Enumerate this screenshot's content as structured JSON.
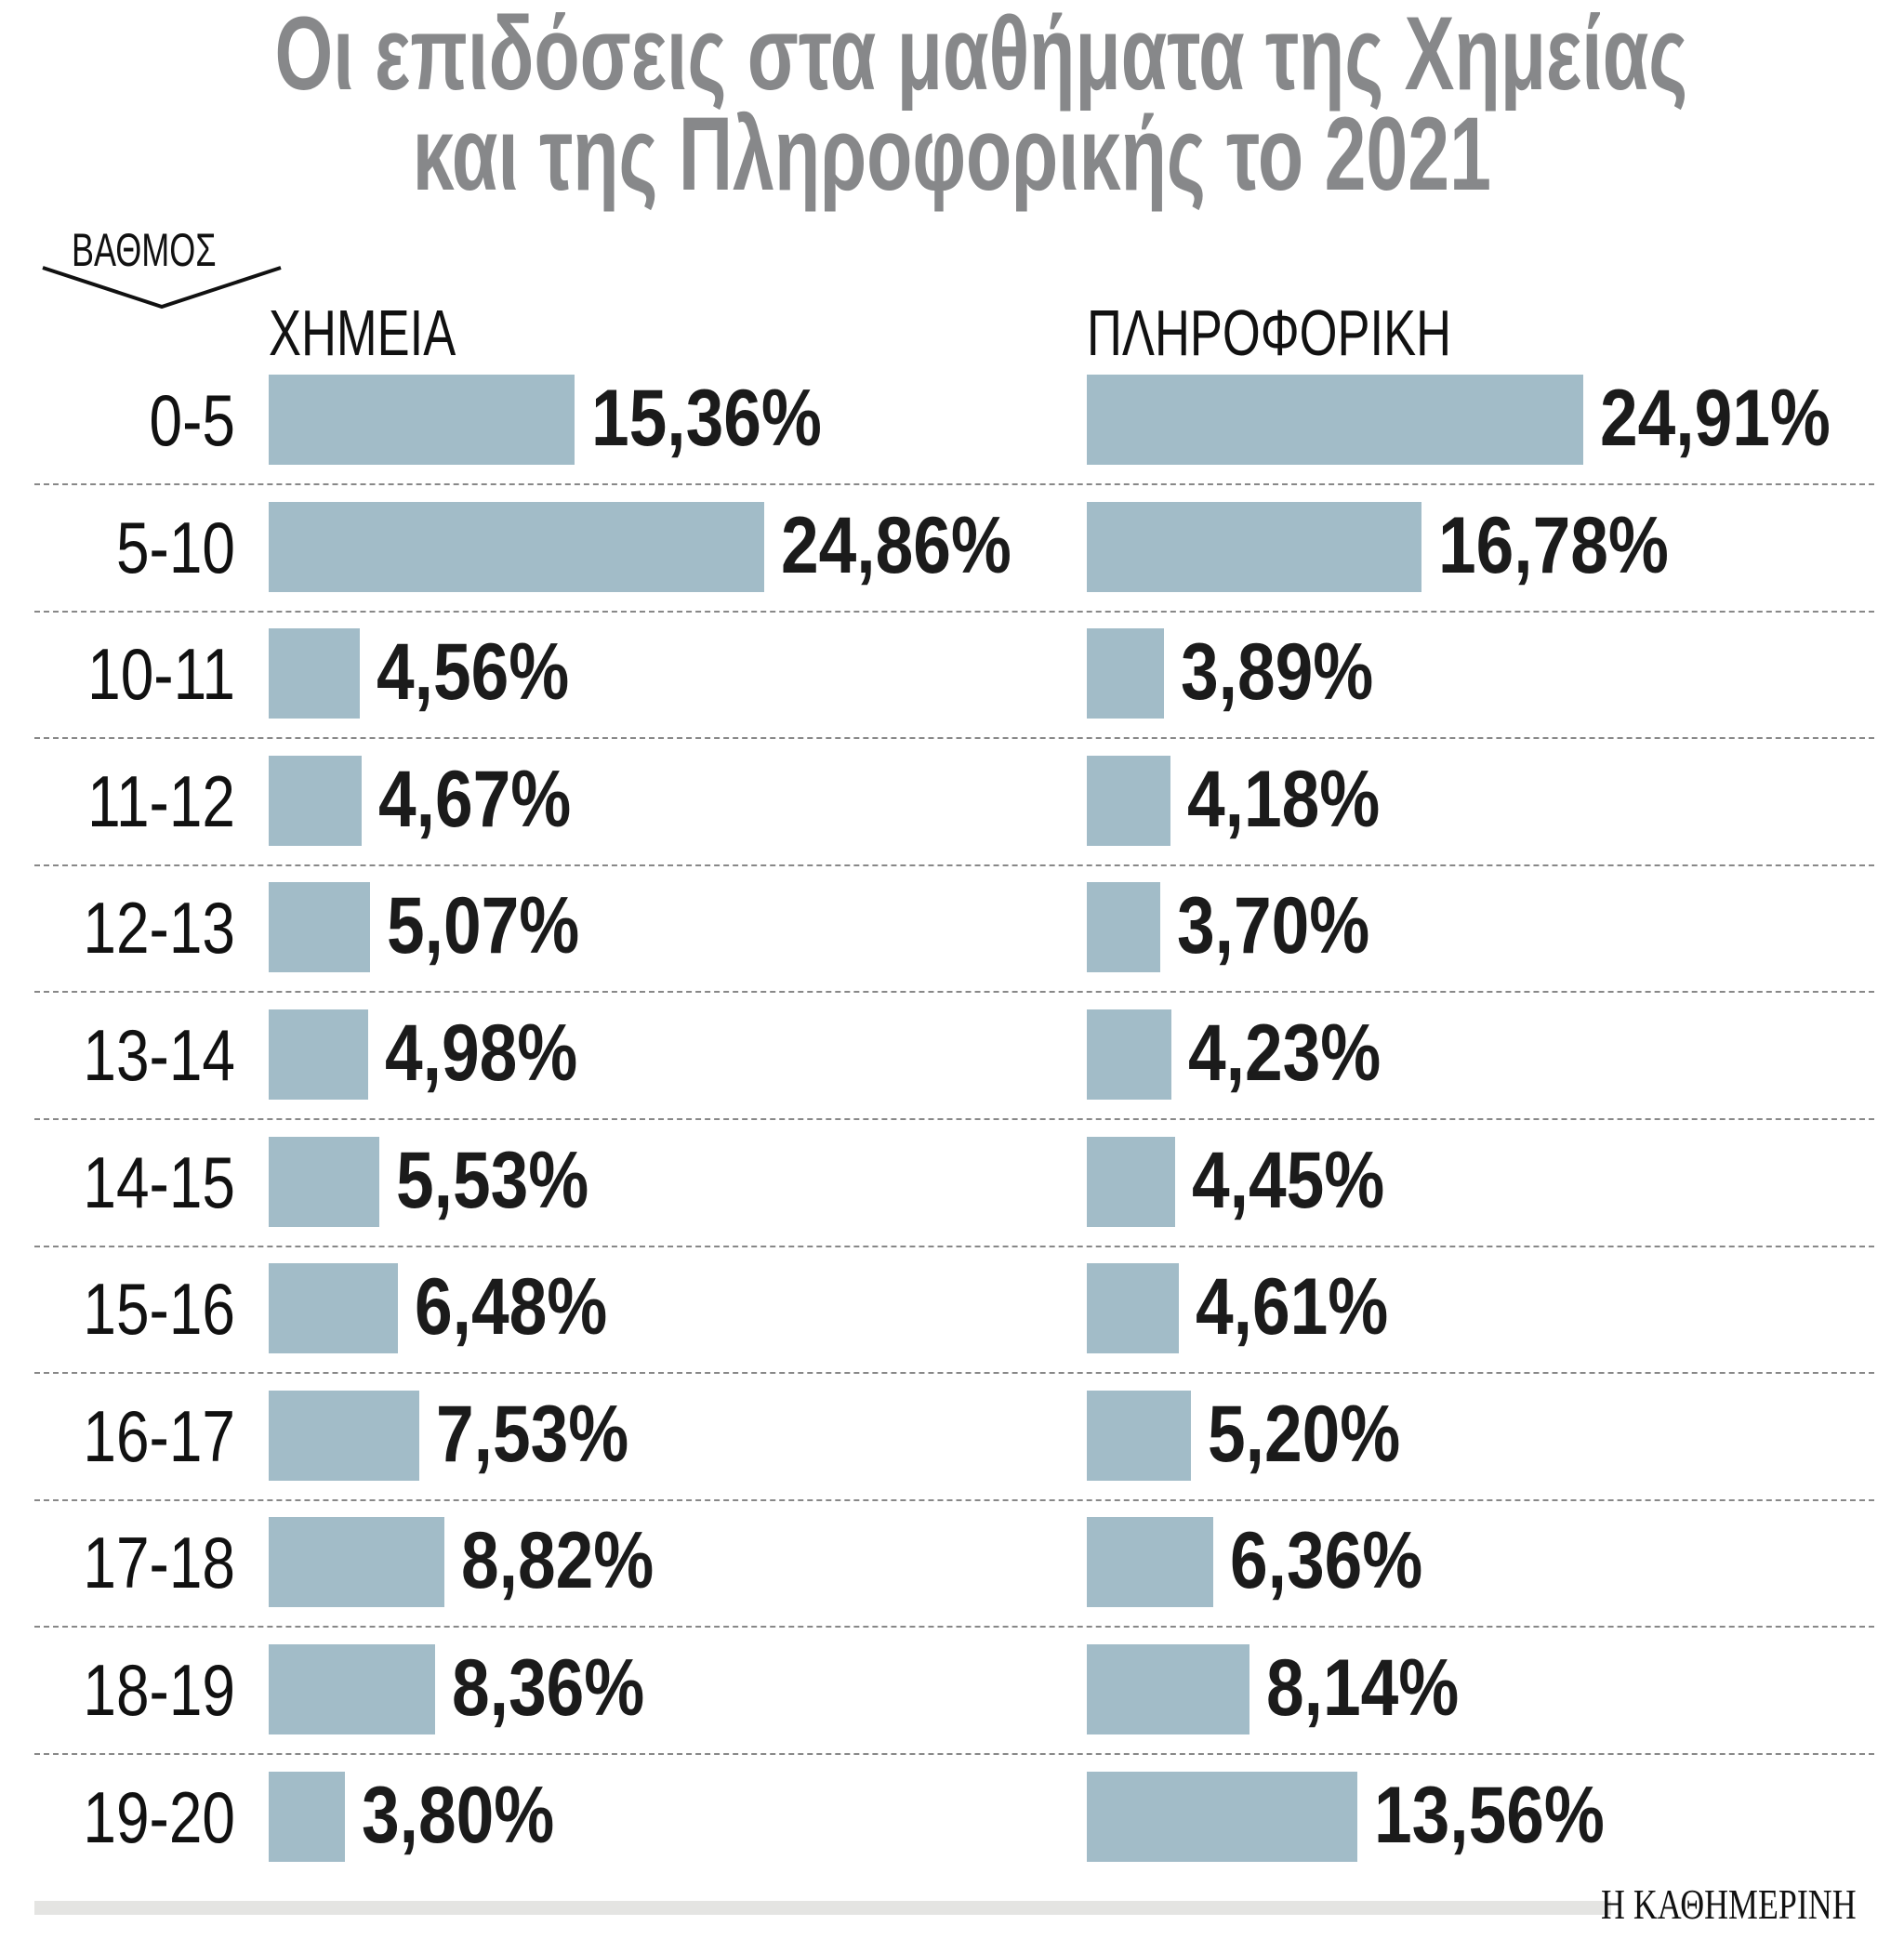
{
  "chart_data": {
    "type": "bar",
    "orientation": "horizontal",
    "title": [
      "Οι επιδόσεις στα μαθήματα της Χημείας",
      "και της Πληροφορικής το 2021"
    ],
    "ylabel": "ΒΑΘΜΟΣ",
    "categories": [
      "0-5",
      "5-10",
      "10-11",
      "11-12",
      "12-13",
      "13-14",
      "14-15",
      "15-16",
      "16-17",
      "17-18",
      "18-19",
      "19-20"
    ],
    "series": [
      {
        "name": "ΧΗΜΕΙΑ",
        "values": [
          15.36,
          24.86,
          4.56,
          4.67,
          5.07,
          4.98,
          5.53,
          6.48,
          7.53,
          8.82,
          8.36,
          3.8
        ],
        "labels": [
          "15,36%",
          "24,86%",
          "4,56%",
          "4,67%",
          "5,07%",
          "4,98%",
          "5,53%",
          "6,48%",
          "7,53%",
          "8,82%",
          "8,36%",
          "3,80%"
        ]
      },
      {
        "name": "ΠΛΗΡΟΦΟΡΙΚΗ",
        "values": [
          24.91,
          16.78,
          3.89,
          4.18,
          3.7,
          4.23,
          4.45,
          4.61,
          5.2,
          6.36,
          8.14,
          13.56
        ],
        "labels": [
          "24,91%",
          "16,78%",
          "3,89%",
          "4,18%",
          "3,70%",
          "4,23%",
          "4,45%",
          "4,61%",
          "5,20%",
          "6,36%",
          "8,14%",
          "13,56%"
        ]
      }
    ],
    "bar_color": "#a2bcc8",
    "grid": false
  },
  "source": "Η ΚΑΘΗΜΕΡΙΝΗ"
}
